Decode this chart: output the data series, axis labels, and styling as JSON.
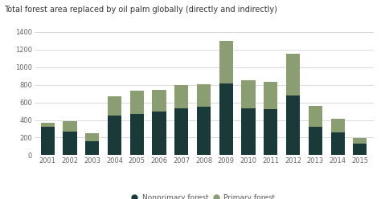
{
  "title": "Total forest area replaced by oil palm globally (directly and indirectly)",
  "years": [
    2001,
    2002,
    2003,
    2004,
    2005,
    2006,
    2007,
    2008,
    2009,
    2010,
    2011,
    2012,
    2013,
    2014,
    2015
  ],
  "nonprimary": [
    320,
    270,
    155,
    450,
    470,
    500,
    530,
    550,
    810,
    530,
    520,
    680,
    325,
    260,
    130
  ],
  "primary": [
    45,
    115,
    95,
    215,
    265,
    240,
    265,
    255,
    490,
    320,
    315,
    470,
    230,
    155,
    65
  ],
  "nonprimary_color": "#1a3a3a",
  "primary_color": "#8a9e72",
  "background_color": "#ffffff",
  "plot_bg_color": "#f0ede8",
  "ylim": [
    0,
    1400
  ],
  "yticks": [
    0,
    200,
    400,
    600,
    800,
    1000,
    1200,
    1400
  ],
  "legend_labels": [
    "Nonprimary forest",
    "Primary forest"
  ],
  "title_fontsize": 7.0,
  "tick_fontsize": 6.0,
  "legend_fontsize": 6.5
}
